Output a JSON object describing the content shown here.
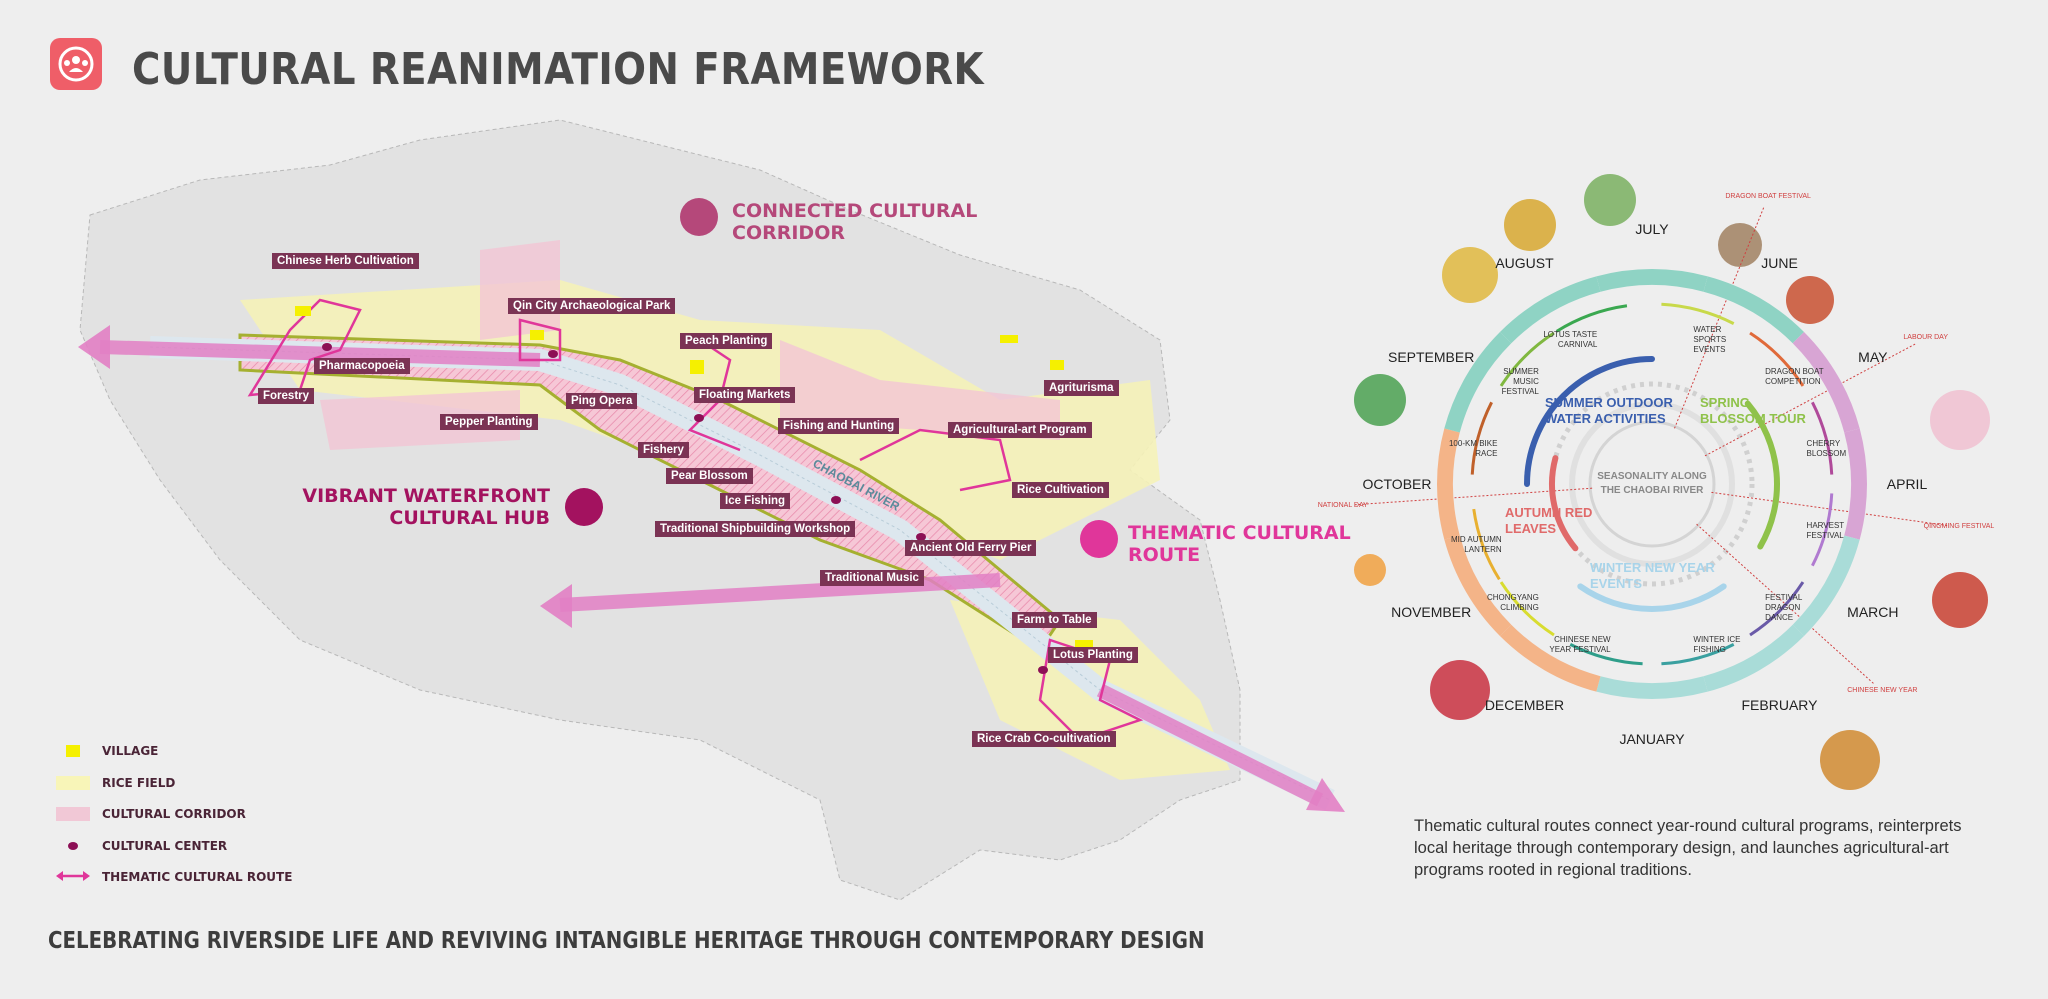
{
  "header": {
    "title": "CULTURAL REANIMATION FRAMEWORK",
    "icon": "people-group-icon",
    "icon_color": "#ef5e68"
  },
  "subtitle": "CELEBRATING RIVERSIDE LIFE AND REVIVING INTANGIBLE HERITAGE THROUGH CONTEMPORARY DESIGN",
  "description": "Thematic cultural routes connect year-round cultural programs, reinterprets local heritage through contemporary design, and launches agricultural-art programs rooted in regional traditions.",
  "map": {
    "river_label": "CHAOBAI RIVER",
    "headings": {
      "corridor": {
        "text": "CONNECTED CULTURAL CORRIDOR",
        "color": "#b5487a",
        "icon": "field-road-icon"
      },
      "hub": {
        "text": "VIBRANT WATERFRONT CULTURAL HUB",
        "color": "#a3125f",
        "icon": "fan-icon"
      },
      "route": {
        "text": "THEMATIC CULTURAL ROUTE",
        "color": "#e0369a",
        "icon": "route-pin-icon"
      }
    },
    "labels": [
      "Chinese Herb Cultivation",
      "Qin City Archaeological Park",
      "Peach Planting",
      "Pharmacopoeia",
      "Forestry",
      "Floating Markets",
      "Ping Opera",
      "Pepper Planting",
      "Agriturisma",
      "Fishing and Hunting",
      "Agricultural-art Program",
      "Fishery",
      "Pear Blossom",
      "Rice Cultivation",
      "Ice Fishing",
      "Traditional Shipbuilding Workshop",
      "Ancient Old Ferry Pier",
      "Traditional Music",
      "Farm to Table",
      "Lotus Planting",
      "Rice Crab Co-cultivation"
    ]
  },
  "legend": [
    {
      "label": "VILLAGE",
      "color": "#f5f000"
    },
    {
      "label": "RICE FIELD",
      "color": "#f8f5b8"
    },
    {
      "label": "CULTURAL CORRIDOR",
      "color": "#f1c8d6"
    },
    {
      "label": "CULTURAL CENTER",
      "color": "#8c0f55"
    },
    {
      "label": "THEMATIC CULTURAL ROUTE",
      "color": "#e0369a"
    }
  ],
  "wheel": {
    "center_title": [
      "SEASONALITY ALONG",
      "THE CHAOBAI RIVER"
    ],
    "months": [
      {
        "name": "JULY",
        "color": "#8fd3c4"
      },
      {
        "name": "JUNE",
        "color": "#8fd3c4"
      },
      {
        "name": "MAY",
        "color": "#d8a5d4"
      },
      {
        "name": "APRIL",
        "color": "#d8a5d4"
      },
      {
        "name": "MARCH",
        "color": "#a9dcd8"
      },
      {
        "name": "FEBRUARY",
        "color": "#a9dcd8"
      },
      {
        "name": "JANUARY",
        "color": "#a9dcd8"
      },
      {
        "name": "DECEMBER",
        "color": "#f4b488"
      },
      {
        "name": "NOVEMBER",
        "color": "#f4b488"
      },
      {
        "name": "OCTOBER",
        "color": "#f4b488"
      },
      {
        "name": "SEPTEMBER",
        "color": "#8fd3c4"
      },
      {
        "name": "AUGUST",
        "color": "#8fd3c4"
      }
    ],
    "events": [
      {
        "name": "WATER SPORTS EVENTS",
        "color": "#c8d94a"
      },
      {
        "name": "DRAGON BOAT COMPETITION",
        "color": "#e06a3a"
      },
      {
        "name": "CHERRY BLOSSOM",
        "color": "#b04a9a"
      },
      {
        "name": "HARVEST FESTIVAL",
        "color": "#b07ad0"
      },
      {
        "name": "FESTIVAL DRAGON DANCE",
        "color": "#6a5aa8"
      },
      {
        "name": "WINTER ICE FISHING",
        "color": "#3aa0a0"
      },
      {
        "name": "CHINESE NEW YEAR FESTIVAL",
        "color": "#2f9e8a"
      },
      {
        "name": "CHONGYANG CLIMBING",
        "color": "#d8dc30"
      },
      {
        "name": "MID AUTUMN LANTERN",
        "color": "#e8b030"
      },
      {
        "name": "100-KM BIKE RACE",
        "color": "#c0602a"
      },
      {
        "name": "SUMMER MUSIC FESTIVAL",
        "color": "#80b840"
      },
      {
        "name": "LOTUS TASTE CARNIVAL",
        "color": "#3aa850"
      }
    ],
    "themes": [
      {
        "name": "SUMMER OUTDOOR WATER ACTIVITIES",
        "color": "#3a5fae"
      },
      {
        "name": "SPRING BLOSSOM TOUR",
        "color": "#8fc24a"
      },
      {
        "name": "WINTER NEW YEAR EVENTS",
        "color": "#a8d4ea"
      },
      {
        "name": "AUTUMN RED LEAVES",
        "color": "#e06a6a"
      }
    ],
    "holidays": [
      "DRAGON BOAT FESTIVAL",
      "LABOUR DAY",
      "QINGMING FESTIVAL",
      "CHINESE NEW YEAR",
      "NATIONAL DAY"
    ]
  }
}
